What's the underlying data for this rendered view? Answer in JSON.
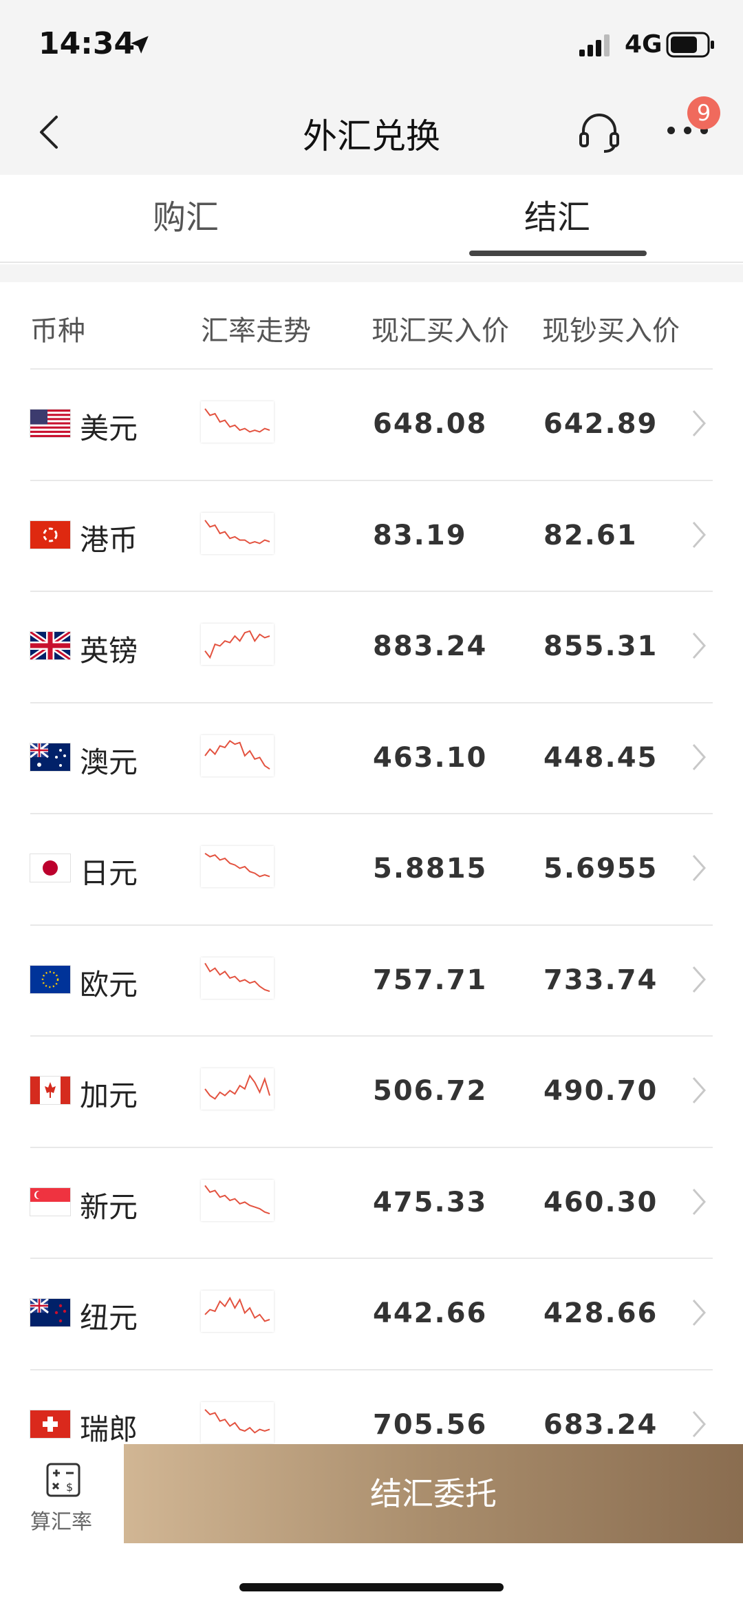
{
  "status_bar": {
    "time": "14:34",
    "network": "4G"
  },
  "nav": {
    "title": "外汇兑换",
    "badge_count": "9"
  },
  "tabs": [
    {
      "label": "购汇",
      "active": false
    },
    {
      "label": "结汇",
      "active": true
    }
  ],
  "table": {
    "headers": [
      "币种",
      "汇率走势",
      "现汇买入价",
      "现钞买入价"
    ],
    "rows": [
      {
        "name": "美元",
        "flag": "us-flag",
        "spot": "648.08",
        "cash": "642.89",
        "trend": [
          0.9,
          0.7,
          0.75,
          0.5,
          0.55,
          0.35,
          0.4,
          0.25,
          0.3,
          0.2,
          0.25,
          0.2,
          0.3,
          0.25
        ]
      },
      {
        "name": "港币",
        "flag": "hk-flag",
        "spot": "83.19",
        "cash": "82.61",
        "trend": [
          0.9,
          0.7,
          0.75,
          0.5,
          0.55,
          0.35,
          0.4,
          0.3,
          0.3,
          0.2,
          0.25,
          0.2,
          0.3,
          0.25
        ]
      },
      {
        "name": "英镑",
        "flag": "gb-flag",
        "spot": "883.24",
        "cash": "855.31",
        "trend": [
          0.3,
          0.1,
          0.5,
          0.45,
          0.6,
          0.55,
          0.75,
          0.6,
          0.85,
          0.9,
          0.6,
          0.8,
          0.7,
          0.75
        ]
      },
      {
        "name": "澳元",
        "flag": "au-flag",
        "spot": "463.10",
        "cash": "448.45",
        "trend": [
          0.5,
          0.7,
          0.55,
          0.8,
          0.75,
          0.95,
          0.85,
          0.9,
          0.5,
          0.65,
          0.4,
          0.45,
          0.2,
          0.1
        ]
      },
      {
        "name": "日元",
        "flag": "jp-flag",
        "spot": "5.8815",
        "cash": "5.6955",
        "trend": [
          0.9,
          0.8,
          0.85,
          0.7,
          0.75,
          0.6,
          0.55,
          0.45,
          0.5,
          0.35,
          0.3,
          0.2,
          0.25,
          0.2
        ]
      },
      {
        "name": "欧元",
        "flag": "eu-flag",
        "spot": "757.71",
        "cash": "733.74",
        "trend": [
          0.95,
          0.7,
          0.8,
          0.6,
          0.7,
          0.5,
          0.55,
          0.4,
          0.45,
          0.35,
          0.4,
          0.25,
          0.15,
          0.1
        ]
      },
      {
        "name": "加元",
        "flag": "ca-flag",
        "spot": "506.72",
        "cash": "490.70",
        "trend": [
          0.5,
          0.3,
          0.2,
          0.4,
          0.3,
          0.45,
          0.35,
          0.6,
          0.5,
          0.9,
          0.7,
          0.4,
          0.8,
          0.3
        ]
      },
      {
        "name": "新元",
        "flag": "sg-flag",
        "spot": "475.33",
        "cash": "460.30",
        "trend": [
          0.95,
          0.75,
          0.8,
          0.6,
          0.65,
          0.5,
          0.55,
          0.4,
          0.45,
          0.35,
          0.3,
          0.25,
          0.15,
          0.1
        ]
      },
      {
        "name": "纽元",
        "flag": "nz-flag",
        "spot": "442.66",
        "cash": "428.66",
        "trend": [
          0.4,
          0.55,
          0.5,
          0.8,
          0.65,
          0.9,
          0.6,
          0.85,
          0.45,
          0.6,
          0.3,
          0.4,
          0.2,
          0.25
        ]
      },
      {
        "name": "瑞郎",
        "flag": "ch-flag",
        "spot": "705.56",
        "cash": "683.24",
        "trend": [
          0.9,
          0.75,
          0.8,
          0.55,
          0.6,
          0.4,
          0.5,
          0.3,
          0.25,
          0.35,
          0.2,
          0.3,
          0.25,
          0.3
        ]
      }
    ]
  },
  "bottom": {
    "calc_label": "算汇率",
    "cta_label": "结汇委托"
  },
  "colors": {
    "trend_line": "#e3523f",
    "cta_start": "#d1b694",
    "cta_end": "#8a6d50",
    "badge": "#f06a5d"
  }
}
